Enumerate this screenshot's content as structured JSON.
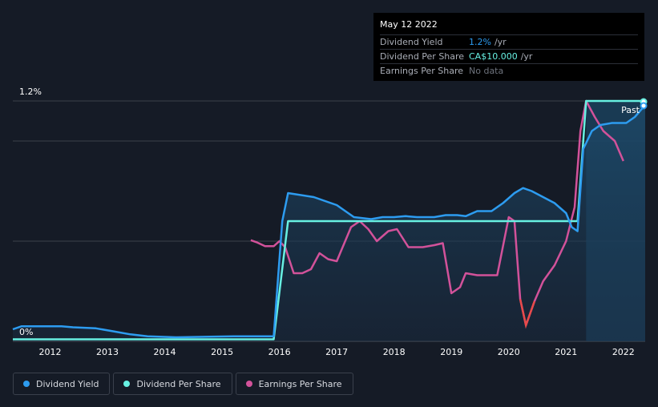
{
  "tooltip": {
    "date": "May 12 2022",
    "rows": [
      {
        "label": "Dividend Yield",
        "value": "1.2%",
        "unit": "/yr",
        "color": "#2d9cf0"
      },
      {
        "label": "Dividend Per Share",
        "value": "CA$10.000",
        "unit": "/yr",
        "color": "#67f0e2"
      },
      {
        "label": "Earnings Per Share",
        "value": "No data",
        "unit": "",
        "color": "#6e737d"
      }
    ]
  },
  "past_label": "Past",
  "legend": [
    {
      "label": "Dividend Yield",
      "color": "#2d9cf0"
    },
    {
      "label": "Dividend Per Share",
      "color": "#67f0e2"
    },
    {
      "label": "Earnings Per Share",
      "color": "#d2529a"
    }
  ],
  "chart_data": {
    "type": "line",
    "xlim": [
      2011.35,
      2022.38
    ],
    "ylim": [
      0,
      1.2
    ],
    "y_ticks": [
      {
        "value": 1.2,
        "label": "1.2%"
      },
      {
        "value": 0,
        "label": "0%"
      }
    ],
    "x_ticks": [
      2012,
      2013,
      2014,
      2015,
      2016,
      2017,
      2018,
      2019,
      2020,
      2021,
      2022
    ],
    "gridlines": [
      1.2,
      1.0,
      0.5
    ],
    "series": [
      {
        "name": "Dividend Yield",
        "color": "#2d9cf0",
        "unit": "%",
        "points": [
          [
            2011.35,
            0.06
          ],
          [
            2011.5,
            0.075
          ],
          [
            2012.2,
            0.075
          ],
          [
            2012.4,
            0.07
          ],
          [
            2012.8,
            0.065
          ],
          [
            2013.1,
            0.05
          ],
          [
            2013.4,
            0.035
          ],
          [
            2013.7,
            0.025
          ],
          [
            2014.2,
            0.02
          ],
          [
            2015.2,
            0.025
          ],
          [
            2015.9,
            0.025
          ],
          [
            2016.05,
            0.6
          ],
          [
            2016.15,
            0.74
          ],
          [
            2016.6,
            0.72
          ],
          [
            2017.0,
            0.68
          ],
          [
            2017.3,
            0.62
          ],
          [
            2017.6,
            0.61
          ],
          [
            2017.8,
            0.62
          ],
          [
            2018.0,
            0.62
          ],
          [
            2018.2,
            0.625
          ],
          [
            2018.4,
            0.62
          ],
          [
            2018.7,
            0.62
          ],
          [
            2018.9,
            0.63
          ],
          [
            2019.1,
            0.63
          ],
          [
            2019.25,
            0.625
          ],
          [
            2019.45,
            0.65
          ],
          [
            2019.7,
            0.65
          ],
          [
            2019.9,
            0.69
          ],
          [
            2020.1,
            0.74
          ],
          [
            2020.25,
            0.765
          ],
          [
            2020.4,
            0.75
          ],
          [
            2020.6,
            0.72
          ],
          [
            2020.8,
            0.69
          ],
          [
            2021.0,
            0.64
          ],
          [
            2021.1,
            0.57
          ],
          [
            2021.2,
            0.55
          ],
          [
            2021.3,
            0.96
          ],
          [
            2021.45,
            1.05
          ],
          [
            2021.6,
            1.08
          ],
          [
            2021.8,
            1.09
          ],
          [
            2022.05,
            1.09
          ],
          [
            2022.2,
            1.12
          ],
          [
            2022.38,
            1.18
          ]
        ]
      },
      {
        "name": "Dividend Per Share",
        "color": "#67f0e2",
        "unit": "CA$",
        "points": [
          [
            2011.35,
            0.01
          ],
          [
            2015.9,
            0.01
          ],
          [
            2016.15,
            0.6
          ],
          [
            2021.2,
            0.6
          ],
          [
            2021.35,
            1.2
          ],
          [
            2022.38,
            1.2
          ]
        ]
      },
      {
        "name": "Earnings Per Share",
        "color": "#d2529a",
        "highlight_color": "#e84a4a",
        "unit": "CA$",
        "points": [
          [
            2015.5,
            0.505
          ],
          [
            2015.6,
            0.495
          ],
          [
            2015.75,
            0.475
          ],
          [
            2015.9,
            0.475
          ],
          [
            2016.0,
            0.5
          ],
          [
            2016.1,
            0.47
          ],
          [
            2016.25,
            0.34
          ],
          [
            2016.4,
            0.34
          ],
          [
            2016.55,
            0.36
          ],
          [
            2016.7,
            0.44
          ],
          [
            2016.85,
            0.41
          ],
          [
            2017.0,
            0.4
          ],
          [
            2017.25,
            0.57
          ],
          [
            2017.4,
            0.6
          ],
          [
            2017.55,
            0.56
          ],
          [
            2017.7,
            0.5
          ],
          [
            2017.9,
            0.55
          ],
          [
            2018.05,
            0.56
          ],
          [
            2018.25,
            0.47
          ],
          [
            2018.5,
            0.47
          ],
          [
            2018.7,
            0.48
          ],
          [
            2018.85,
            0.49
          ],
          [
            2019.0,
            0.24
          ],
          [
            2019.15,
            0.27
          ],
          [
            2019.25,
            0.34
          ],
          [
            2019.45,
            0.33
          ],
          [
            2019.55,
            0.33
          ],
          [
            2019.8,
            0.33
          ],
          [
            2020.0,
            0.62
          ],
          [
            2020.1,
            0.6
          ],
          [
            2020.2,
            0.21
          ],
          [
            2020.3,
            0.08
          ],
          [
            2020.45,
            0.2
          ],
          [
            2020.6,
            0.3
          ],
          [
            2020.8,
            0.38
          ],
          [
            2021.0,
            0.5
          ],
          [
            2021.15,
            0.67
          ],
          [
            2021.25,
            1.05
          ],
          [
            2021.35,
            1.2
          ],
          [
            2021.5,
            1.12
          ],
          [
            2021.65,
            1.05
          ],
          [
            2021.85,
            1.0
          ],
          [
            2022.0,
            0.9
          ]
        ]
      }
    ]
  }
}
